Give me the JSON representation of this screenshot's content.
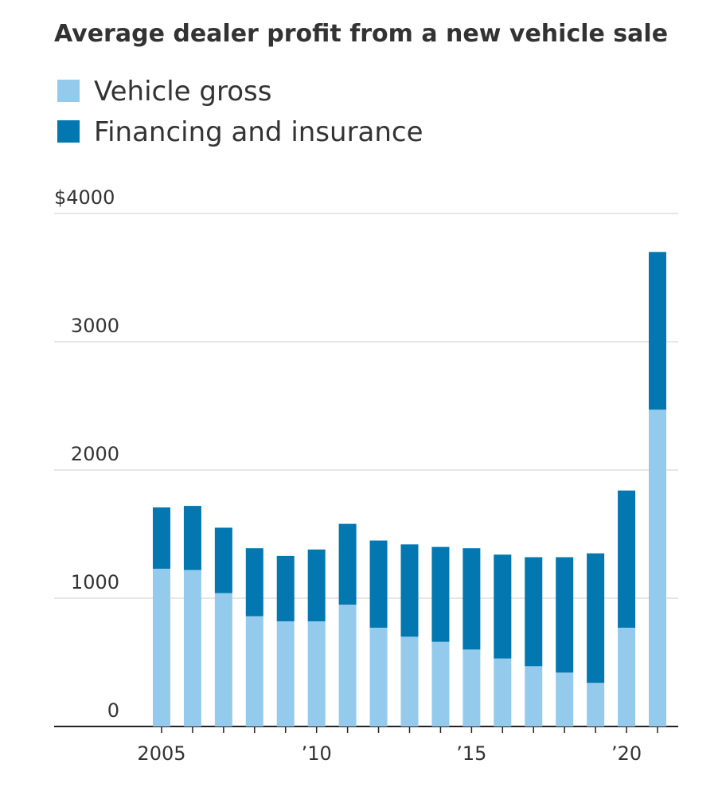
{
  "chart_data": {
    "type": "stacked-bar",
    "title": "Average dealer profit from a new vehicle sale",
    "categories": [
      "2005",
      null,
      null,
      null,
      null,
      "’10",
      null,
      null,
      null,
      null,
      "’15",
      null,
      null,
      null,
      null,
      "’20",
      null
    ],
    "series": [
      {
        "name": "Vehicle gross",
        "color": "#94cbed",
        "values": [
          1230,
          1220,
          1040,
          860,
          820,
          820,
          950,
          770,
          700,
          660,
          600,
          530,
          470,
          420,
          340,
          770,
          2470
        ]
      },
      {
        "name": "Financing and insurance",
        "color": "#0277b0",
        "values": [
          478,
          500,
          510,
          530,
          510,
          560,
          630,
          680,
          720,
          740,
          790,
          810,
          850,
          900,
          1010,
          1070,
          1230
        ]
      }
    ],
    "ylim": [
      0,
      4000
    ],
    "yticks": [
      0,
      1000,
      2000,
      3000,
      {
        "value": 4000,
        "label": "$4000"
      }
    ],
    "grid": true
  }
}
